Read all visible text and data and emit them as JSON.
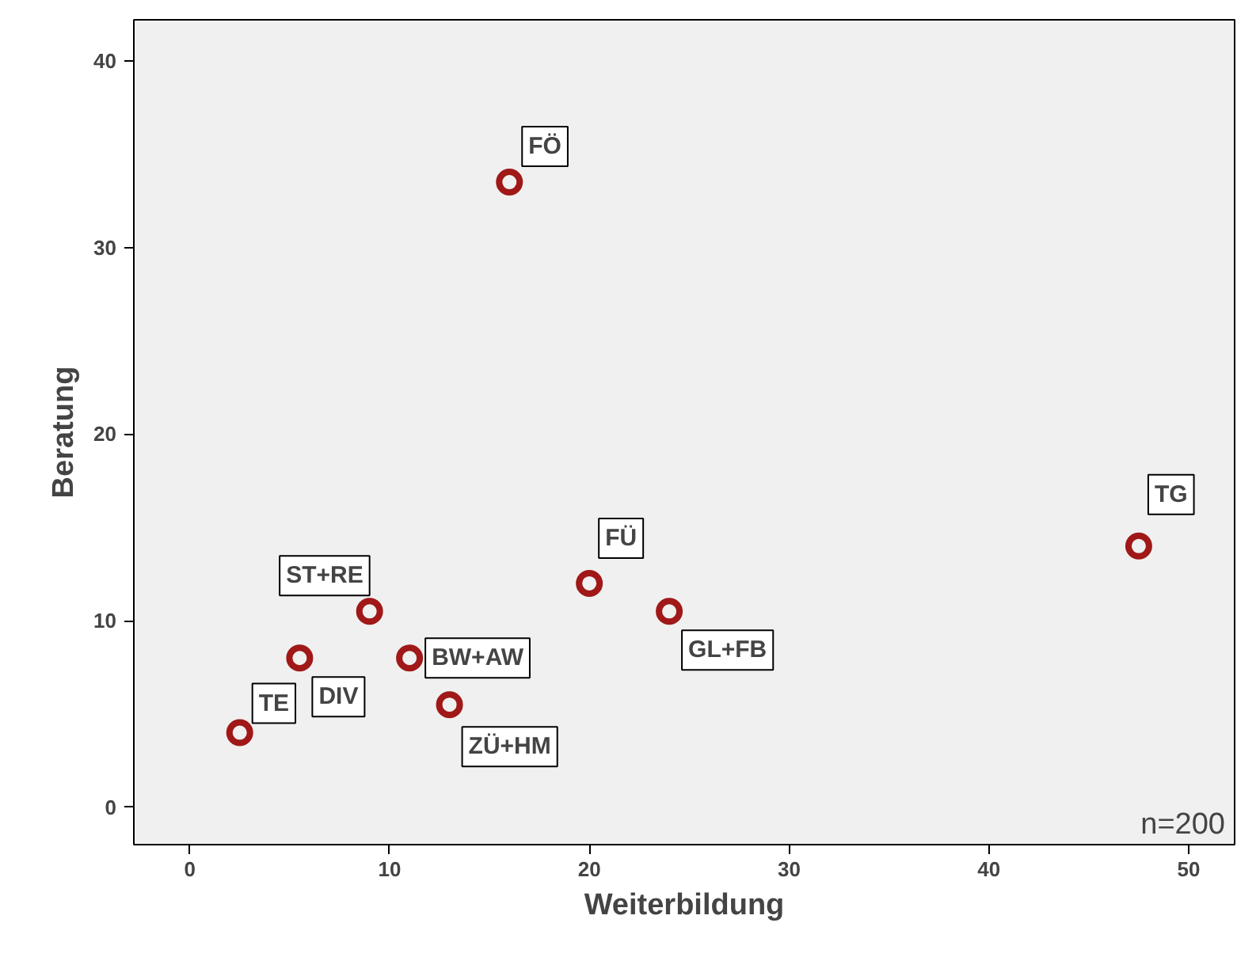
{
  "chart_data": {
    "type": "scatter",
    "xlabel": "Weiterbildung",
    "ylabel": "Beratung",
    "x": [
      16,
      47.5,
      20,
      24,
      9,
      11,
      5.5,
      13,
      2.5
    ],
    "values": [
      33.5,
      14,
      12,
      10.5,
      10.5,
      8,
      8,
      5.5,
      4
    ],
    "color": "#a01818",
    "marker": "circle",
    "grid": false,
    "xlim": [
      -2.8,
      52.3
    ],
    "ylim": [
      -2,
      42.2
    ],
    "xticks": [
      0,
      10,
      20,
      30,
      40,
      50
    ],
    "yticks": [
      0,
      10,
      20,
      30,
      40
    ],
    "annotations": [
      {
        "text": "FÖ",
        "x": 16,
        "y": 33.5
      },
      {
        "text": "TG",
        "x": 47.5,
        "y": 14
      },
      {
        "text": "FÜ",
        "x": 20,
        "y": 12
      },
      {
        "text": "GL+FB",
        "x": 24,
        "y": 10.5
      },
      {
        "text": "ST+RE",
        "x": 9,
        "y": 10.5
      },
      {
        "text": "BW+AW",
        "x": 11,
        "y": 8
      },
      {
        "text": "DIV",
        "x": 5.5,
        "y": 8
      },
      {
        "text": "ZÜ+HM",
        "x": 13,
        "y": 5.5
      },
      {
        "text": "TE",
        "x": 2.5,
        "y": 4
      },
      "n=200"
    ]
  }
}
